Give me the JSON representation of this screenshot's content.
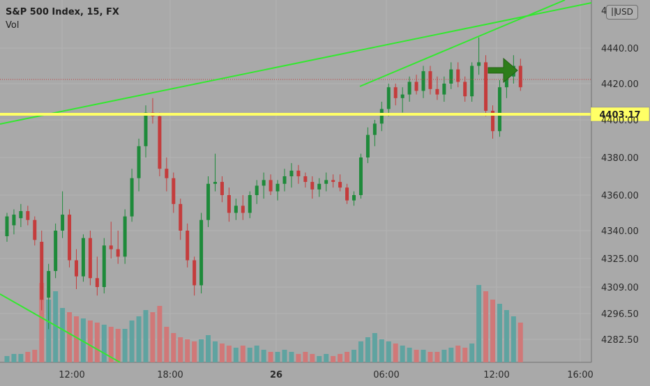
{
  "header": {
    "title": "S&P 500 Index, 15, FX",
    "sub": "Vol"
  },
  "currency": "USD",
  "price_label": "4403.17",
  "colors": {
    "up": "#1e8a3a",
    "down": "#c43c3c",
    "vol_up": "#5fa3a0",
    "vol_down": "#d07878",
    "trend": "#33e82f",
    "level": "#ffff66",
    "arrow": "#2e7d1a"
  },
  "chart_data": {
    "type": "candlestick",
    "y_ticks": [
      "4440.00",
      "4420.00",
      "4400.00",
      "4380.00",
      "4360.00",
      "4340.00",
      "4325.00",
      "4309.00",
      "4296.50",
      "4282.50"
    ],
    "y_tick_values": [
      4440,
      4420,
      4400,
      4380,
      4360,
      4340,
      4325,
      4309,
      4296.5,
      4282.5
    ],
    "x_ticks": [
      "12:00",
      "18:00",
      "26",
      "06:00",
      "12:00",
      "16:00"
    ],
    "top_tick_partial": "4",
    "horizontal_level": 4403.17,
    "candles": [
      [
        4337,
        4350,
        4334,
        4348
      ],
      [
        4343,
        4352,
        4338,
        4349
      ],
      [
        4347,
        4355,
        4342,
        4351
      ],
      [
        4351,
        4354,
        4343,
        4346
      ],
      [
        4346,
        4348,
        4332,
        4335
      ],
      [
        4334,
        4340,
        4298,
        4303
      ],
      [
        4304,
        4322,
        4288,
        4318
      ],
      [
        4318,
        4344,
        4314,
        4340
      ],
      [
        4340,
        4362,
        4336,
        4349
      ],
      [
        4349,
        4352,
        4320,
        4324
      ],
      [
        4324,
        4330,
        4308,
        4315
      ],
      [
        4315,
        4338,
        4312,
        4336
      ],
      [
        4336,
        4340,
        4310,
        4314
      ],
      [
        4314,
        4326,
        4305,
        4309
      ],
      [
        4309,
        4336,
        4306,
        4332
      ],
      [
        4332,
        4345,
        4325,
        4330
      ],
      [
        4330,
        4340,
        4322,
        4326
      ],
      [
        4326,
        4352,
        4322,
        4348
      ],
      [
        4348,
        4374,
        4345,
        4369
      ],
      [
        4369,
        4390,
        4362,
        4386
      ],
      [
        4386,
        4408,
        4380,
        4404
      ],
      [
        4404,
        4412,
        4398,
        4402
      ],
      [
        4402,
        4404,
        4370,
        4374
      ],
      [
        4374,
        4380,
        4362,
        4369
      ],
      [
        4369,
        4372,
        4350,
        4355
      ],
      [
        4355,
        4358,
        4335,
        4340
      ],
      [
        4340,
        4344,
        4320,
        4324
      ],
      [
        4324,
        4326,
        4305,
        4310
      ],
      [
        4310,
        4350,
        4306,
        4346
      ],
      [
        4346,
        4370,
        4342,
        4366
      ],
      [
        4366,
        4382,
        4362,
        4367
      ],
      [
        4367,
        4370,
        4356,
        4360
      ],
      [
        4360,
        4364,
        4345,
        4350
      ],
      [
        4350,
        4358,
        4346,
        4354
      ],
      [
        4354,
        4360,
        4346,
        4350
      ],
      [
        4350,
        4362,
        4347,
        4360
      ],
      [
        4360,
        4368,
        4355,
        4365
      ],
      [
        4365,
        4372,
        4358,
        4368
      ],
      [
        4368,
        4371,
        4360,
        4362
      ],
      [
        4362,
        4368,
        4357,
        4366
      ],
      [
        4366,
        4374,
        4362,
        4370
      ],
      [
        4370,
        4377,
        4364,
        4373
      ],
      [
        4373,
        4376,
        4366,
        4370
      ],
      [
        4370,
        4372,
        4364,
        4367
      ],
      [
        4367,
        4370,
        4358,
        4363
      ],
      [
        4363,
        4369,
        4359,
        4366
      ],
      [
        4366,
        4372,
        4362,
        4368
      ],
      [
        4368,
        4371,
        4364,
        4367
      ],
      [
        4367,
        4371,
        4362,
        4364
      ],
      [
        4364,
        4366,
        4355,
        4357
      ],
      [
        4357,
        4362,
        4354,
        4360
      ],
      [
        4360,
        4382,
        4358,
        4380
      ],
      [
        4380,
        4396,
        4377,
        4392
      ],
      [
        4392,
        4400,
        4386,
        4398
      ],
      [
        4398,
        4410,
        4394,
        4406
      ],
      [
        4406,
        4420,
        4402,
        4418
      ],
      [
        4418,
        4420,
        4408,
        4412
      ],
      [
        4412,
        4418,
        4404,
        4414
      ],
      [
        4414,
        4424,
        4410,
        4421
      ],
      [
        4421,
        4425,
        4414,
        4416
      ],
      [
        4416,
        4430,
        4412,
        4427
      ],
      [
        4427,
        4430,
        4414,
        4417
      ],
      [
        4417,
        4424,
        4411,
        4414
      ],
      [
        4414,
        4424,
        4410,
        4420
      ],
      [
        4420,
        4432,
        4417,
        4428
      ],
      [
        4428,
        4432,
        4418,
        4421
      ],
      [
        4421,
        4424,
        4410,
        4413
      ],
      [
        4413,
        4432,
        4410,
        4430
      ],
      [
        4430,
        4446,
        4425,
        4432
      ],
      [
        4432,
        4436,
        4402,
        4405
      ],
      [
        4405,
        4408,
        4390,
        4394
      ],
      [
        4394,
        4422,
        4391,
        4418
      ],
      [
        4418,
        4428,
        4412,
        4424
      ],
      [
        4424,
        4436,
        4420,
        4430
      ],
      [
        4430,
        4434,
        4416,
        4418
      ]
    ],
    "volumes": [
      3,
      4,
      4,
      5,
      6,
      38,
      30,
      34,
      26,
      24,
      22,
      21,
      20,
      19,
      18,
      17,
      16,
      16,
      20,
      22,
      25,
      24,
      27,
      17,
      14,
      12,
      11,
      10,
      11,
      13,
      10,
      9,
      8,
      7,
      8,
      7,
      8,
      6,
      5,
      5,
      6,
      5,
      4,
      5,
      4,
      3,
      4,
      3,
      4,
      5,
      6,
      10,
      12,
      14,
      11,
      10,
      9,
      8,
      7,
      6,
      6,
      5,
      5,
      6,
      7,
      8,
      7,
      9,
      37,
      34,
      30,
      28,
      25,
      22,
      19
    ]
  }
}
